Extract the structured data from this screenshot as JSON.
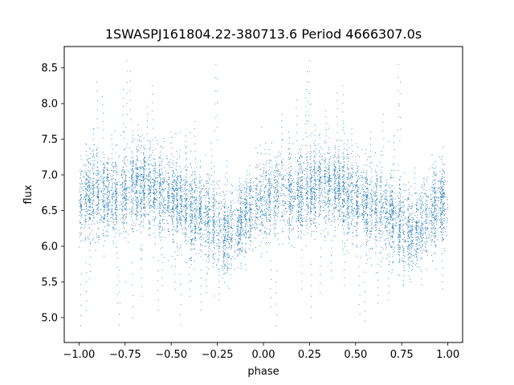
{
  "chart_data": {
    "type": "scatter",
    "title": "1SWASPJ161804.22-380713.6 Period 4666307.0s",
    "xlabel": "phase",
    "ylabel": "flux",
    "xlim": [
      -1.08,
      1.08
    ],
    "ylim": [
      4.65,
      8.8
    ],
    "x_ticks": [
      -1.0,
      -0.75,
      -0.5,
      -0.25,
      0.0,
      0.25,
      0.5,
      0.75,
      1.0
    ],
    "x_tick_labels": [
      "−1.00",
      "−0.75",
      "−0.50",
      "−0.25",
      "0.00",
      "0.25",
      "0.50",
      "0.75",
      "1.00"
    ],
    "y_ticks": [
      5.0,
      5.5,
      6.0,
      6.5,
      7.0,
      7.5,
      8.0,
      8.5
    ],
    "y_tick_labels": [
      "5.0",
      "5.5",
      "6.0",
      "6.5",
      "7.0",
      "7.5",
      "8.0",
      "8.5"
    ],
    "grid": false,
    "legend": "none",
    "series": [
      {
        "color": "#1f77b4",
        "marker": "point",
        "points_per_bin": 70,
        "profile": [
          {
            "phase": -1.0,
            "center": 6.62,
            "spread": 0.28
          },
          {
            "phase": -0.95,
            "center": 6.72,
            "spread": 0.3
          },
          {
            "phase": -0.9,
            "center": 6.76,
            "spread": 0.3
          },
          {
            "phase": -0.85,
            "center": 6.66,
            "spread": 0.28
          },
          {
            "phase": -0.8,
            "center": 6.7,
            "spread": 0.3
          },
          {
            "phase": -0.75,
            "center": 6.78,
            "spread": 0.32
          },
          {
            "phase": -0.7,
            "center": 6.86,
            "spread": 0.3
          },
          {
            "phase": -0.65,
            "center": 6.84,
            "spread": 0.3
          },
          {
            "phase": -0.6,
            "center": 6.82,
            "spread": 0.3
          },
          {
            "phase": -0.55,
            "center": 6.74,
            "spread": 0.3
          },
          {
            "phase": -0.5,
            "center": 6.68,
            "spread": 0.28
          },
          {
            "phase": -0.45,
            "center": 6.6,
            "spread": 0.3
          },
          {
            "phase": -0.4,
            "center": 6.52,
            "spread": 0.32
          },
          {
            "phase": -0.35,
            "center": 6.48,
            "spread": 0.3
          },
          {
            "phase": -0.3,
            "center": 6.4,
            "spread": 0.3
          },
          {
            "phase": -0.25,
            "center": 6.3,
            "spread": 0.32
          },
          {
            "phase": -0.2,
            "center": 6.18,
            "spread": 0.3
          },
          {
            "phase": -0.1,
            "center": 6.4,
            "spread": 0.28
          },
          {
            "phase": -0.05,
            "center": 6.56,
            "spread": 0.28
          },
          {
            "phase": 0.0,
            "center": 6.62,
            "spread": 0.28
          },
          {
            "phase": 0.05,
            "center": 6.72,
            "spread": 0.3
          },
          {
            "phase": 0.1,
            "center": 6.76,
            "spread": 0.3
          },
          {
            "phase": 0.15,
            "center": 6.66,
            "spread": 0.28
          },
          {
            "phase": 0.2,
            "center": 6.7,
            "spread": 0.3
          },
          {
            "phase": 0.25,
            "center": 6.78,
            "spread": 0.32
          },
          {
            "phase": 0.3,
            "center": 6.86,
            "spread": 0.3
          },
          {
            "phase": 0.35,
            "center": 6.84,
            "spread": 0.3
          },
          {
            "phase": 0.4,
            "center": 6.82,
            "spread": 0.3
          },
          {
            "phase": 0.45,
            "center": 6.74,
            "spread": 0.3
          },
          {
            "phase": 0.5,
            "center": 6.68,
            "spread": 0.28
          },
          {
            "phase": 0.55,
            "center": 6.6,
            "spread": 0.3
          },
          {
            "phase": 0.6,
            "center": 6.52,
            "spread": 0.32
          },
          {
            "phase": 0.65,
            "center": 6.48,
            "spread": 0.3
          },
          {
            "phase": 0.7,
            "center": 6.4,
            "spread": 0.3
          },
          {
            "phase": 0.75,
            "center": 6.3,
            "spread": 0.32
          },
          {
            "phase": 0.8,
            "center": 6.18,
            "spread": 0.3
          },
          {
            "phase": 0.9,
            "center": 6.4,
            "spread": 0.28
          },
          {
            "phase": 0.95,
            "center": 6.56,
            "spread": 0.28
          },
          {
            "phase": 1.0,
            "center": 6.62,
            "spread": 0.28
          }
        ],
        "outliers": [
          [
            -0.99,
            4.88
          ],
          [
            -0.96,
            5.1
          ],
          [
            -0.94,
            5.55
          ],
          [
            -0.92,
            7.65
          ],
          [
            -0.9,
            8.3
          ],
          [
            -0.87,
            8.1
          ],
          [
            -0.82,
            7.5
          ],
          [
            -0.79,
            5.2
          ],
          [
            -0.78,
            4.9
          ],
          [
            -0.76,
            8.2
          ],
          [
            -0.74,
            8.6
          ],
          [
            -0.72,
            8.45
          ],
          [
            -0.71,
            5.0
          ],
          [
            -0.68,
            7.7
          ],
          [
            -0.66,
            5.3
          ],
          [
            -0.63,
            7.95
          ],
          [
            -0.6,
            8.25
          ],
          [
            -0.57,
            5.1
          ],
          [
            -0.55,
            5.45
          ],
          [
            -0.5,
            7.6
          ],
          [
            -0.48,
            5.4
          ],
          [
            -0.45,
            4.9
          ],
          [
            -0.42,
            7.55
          ],
          [
            -0.4,
            5.3
          ],
          [
            -0.37,
            7.75
          ],
          [
            -0.34,
            5.1
          ],
          [
            -0.31,
            5.35
          ],
          [
            -0.28,
            7.45
          ],
          [
            -0.26,
            8.55
          ],
          [
            -0.25,
            8.35
          ],
          [
            -0.24,
            5.25
          ],
          [
            -0.22,
            5.55
          ],
          [
            -0.2,
            7.2
          ],
          [
            -0.13,
            6.95
          ],
          [
            -0.09,
            7.05
          ],
          [
            0.0,
            7.1
          ],
          [
            0.04,
            5.15
          ],
          [
            0.07,
            4.88
          ],
          [
            0.1,
            7.85
          ],
          [
            0.14,
            7.6
          ],
          [
            0.18,
            8.05
          ],
          [
            0.21,
            5.4
          ],
          [
            0.23,
            8.2
          ],
          [
            0.24,
            8.45
          ],
          [
            0.25,
            8.6
          ],
          [
            0.26,
            5.0
          ],
          [
            0.28,
            7.7
          ],
          [
            0.31,
            5.35
          ],
          [
            0.34,
            7.9
          ],
          [
            0.37,
            5.55
          ],
          [
            0.4,
            8.15
          ],
          [
            0.43,
            8.25
          ],
          [
            0.44,
            5.45
          ],
          [
            0.48,
            7.65
          ],
          [
            0.52,
            5.05
          ],
          [
            0.55,
            4.95
          ],
          [
            0.58,
            7.6
          ],
          [
            0.62,
            5.2
          ],
          [
            0.65,
            7.85
          ],
          [
            0.68,
            5.25
          ],
          [
            0.71,
            7.55
          ],
          [
            0.73,
            8.55
          ],
          [
            0.74,
            8.3
          ],
          [
            0.76,
            5.45
          ],
          [
            0.79,
            5.65
          ],
          [
            0.82,
            7.1
          ],
          [
            0.87,
            6.95
          ],
          [
            0.92,
            7.15
          ],
          [
            0.97,
            5.4
          ]
        ]
      }
    ]
  }
}
